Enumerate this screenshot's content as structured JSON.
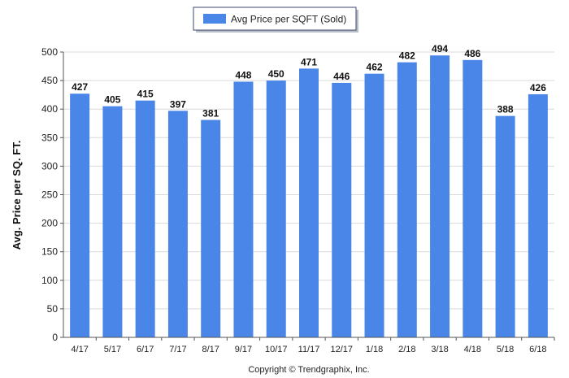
{
  "chart_data": {
    "type": "bar",
    "categories": [
      "4/17",
      "5/17",
      "6/17",
      "7/17",
      "8/17",
      "9/17",
      "10/17",
      "11/17",
      "12/17",
      "1/18",
      "2/18",
      "3/18",
      "4/18",
      "5/18",
      "6/18"
    ],
    "series": [
      {
        "name": "Avg Price per SQFT (Sold)",
        "values": [
          427,
          405,
          415,
          397,
          381,
          448,
          450,
          471,
          446,
          462,
          482,
          494,
          486,
          388,
          426
        ]
      }
    ],
    "ylabel": "Avg. Price per SQ. FT.",
    "xlabel": "",
    "ylim": [
      0,
      500
    ],
    "yticks": [
      0,
      50,
      100,
      150,
      200,
      250,
      300,
      350,
      400,
      450,
      500
    ],
    "grid": true,
    "legend_position": "top-center",
    "bar_color": "#4a86e8"
  },
  "footer": {
    "copyright": "Copyright © Trendgraphix, Inc."
  }
}
